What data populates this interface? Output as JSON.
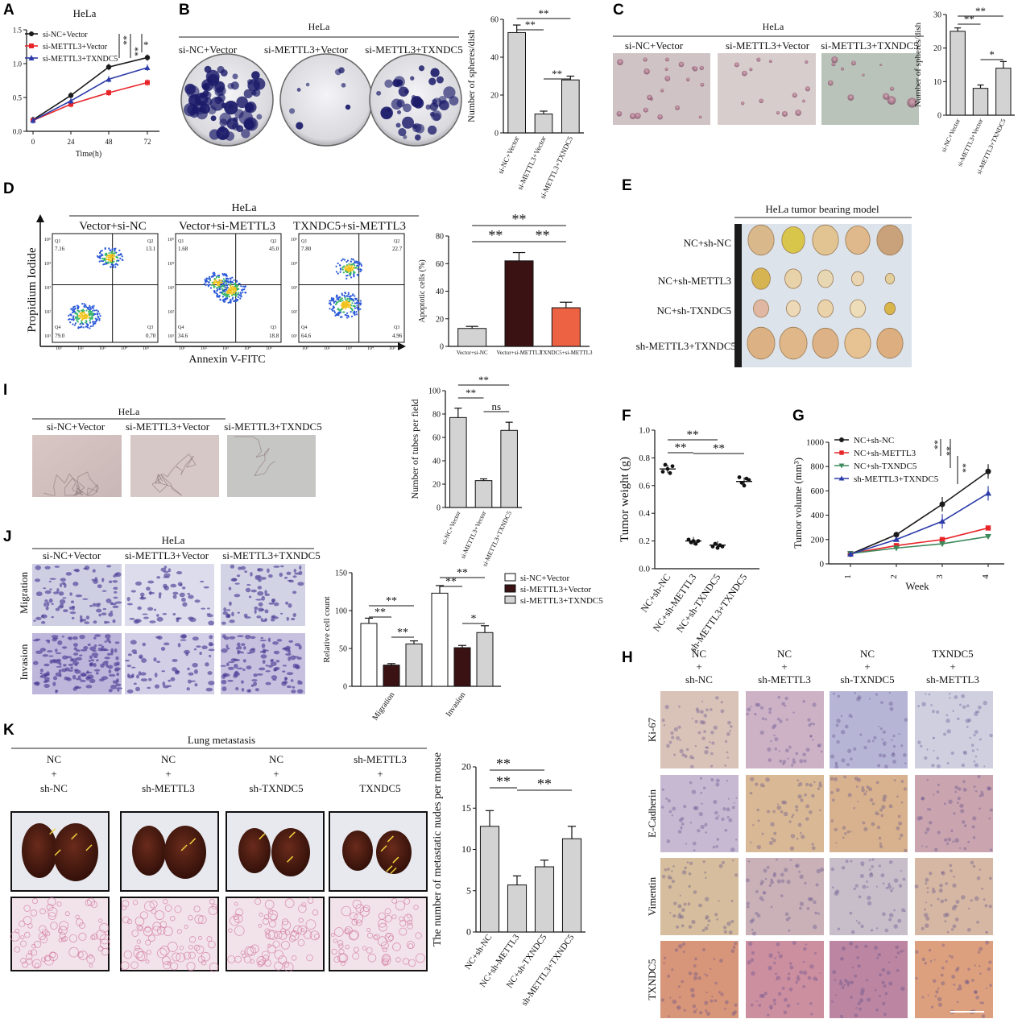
{
  "colors": {
    "black": "#1a1a1a",
    "red": "#e8262a",
    "blue": "#2c3ba8",
    "green": "#3d8a5c",
    "gray": "#d3d3d3",
    "dark": "#3a1214",
    "orange": "#ee6244",
    "crystal": "#1b1b6a"
  },
  "panels": {
    "A": {
      "label": "A",
      "title": "HeLa"
    },
    "B": {
      "label": "B",
      "title": "HeLa",
      "images": [
        "si-NC+Vector",
        "si-METTL3+Vector",
        "si-METTL3+TXNDC5"
      ]
    },
    "C": {
      "label": "C",
      "title": "HeLa",
      "images": [
        "si-NC+Vector",
        "si-METTL3+Vector",
        "si-METTL3+TXNDC5"
      ]
    },
    "D": {
      "label": "D",
      "title": "HeLa",
      "flow_titles": [
        "Vector+si-NC",
        "Vector+si-METTL3",
        "TXNDC5+si-METTL3"
      ],
      "y_axis": "Propidium Iodide",
      "x_axis": "Annexin V-FITC",
      "quadrant_names": [
        "Q1",
        "Q2",
        "Q3",
        "Q4"
      ],
      "quadrants": [
        {
          "q1": "7.16",
          "q2": "13.1",
          "q3": "0.70",
          "q4": "79.0"
        },
        {
          "q1": "1.68",
          "q2": "45.0",
          "q3": "18.8",
          "q4": "34.6"
        },
        {
          "q1": "7.80",
          "q2": "22.7",
          "q3": "4.96",
          "q4": "64.6"
        }
      ],
      "ticks": [
        "10¹",
        "10²",
        "10³",
        "10⁴",
        "10⁵"
      ]
    },
    "E": {
      "label": "E",
      "title": "HeLa tumor bearing model",
      "rows": [
        "NC+sh-NC",
        "NC+sh-METTL3",
        "NC+sh-TXNDC5",
        "sh-METTL3+TXNDC5"
      ]
    },
    "F": {
      "label": "F"
    },
    "G": {
      "label": "G"
    },
    "H": {
      "label": "H",
      "columns": [
        [
          "NC",
          "+",
          "sh-NC"
        ],
        [
          "NC",
          "+",
          "sh-METTL3"
        ],
        [
          "NC",
          "+",
          "sh-TXNDC5"
        ],
        [
          "TXNDC5",
          "+",
          "sh-METTL3"
        ]
      ],
      "rows": [
        "Ki-67",
        "E-Cadherin",
        "Vimentin",
        "TXNDC5"
      ]
    },
    "I": {
      "label": "I",
      "title": "HeLa",
      "images": [
        "si-NC+Vector",
        "si-METTL3+Vector",
        "si-METTL3+TXNDC5"
      ]
    },
    "J": {
      "label": "J",
      "title": "HeLa",
      "images": [
        "si-NC+Vector",
        "si-METTL3+Vector",
        "si-METTL3+TXNDC5"
      ],
      "rows": [
        "Migration",
        "Invasion"
      ]
    },
    "K": {
      "label": "K",
      "title": "Lung metastasis",
      "columns": [
        [
          "NC",
          "+",
          "sh-NC"
        ],
        [
          "NC",
          "+",
          "sh-METTL3"
        ],
        [
          "NC",
          "+",
          "sh-TXNDC5"
        ],
        [
          "sh-METTL3",
          "+",
          "TXNDC5"
        ]
      ]
    }
  },
  "chart_data": [
    {
      "id": "A",
      "type": "line",
      "x": [
        0,
        24,
        48,
        72
      ],
      "xlabel": "Time(h)",
      "ylabel": "",
      "ylim": [
        0,
        1.5
      ],
      "yticks": [
        0,
        0.5,
        1.0,
        1.5
      ],
      "ytick_labels": [
        "0.0",
        "0.5",
        "1.0",
        "1.5"
      ],
      "series": [
        {
          "name": "si-NC+Vector",
          "color": "#1a1a1a",
          "values": [
            0.17,
            0.53,
            0.95,
            1.09
          ]
        },
        {
          "name": "si-METTL3+Vector",
          "color": "#e8262a",
          "values": [
            0.16,
            0.4,
            0.57,
            0.72
          ]
        },
        {
          "name": "si-METTL3+TXNDC5",
          "color": "#2c3ba8",
          "values": [
            0.16,
            0.45,
            0.77,
            0.94
          ]
        }
      ],
      "sig": [
        "**",
        "**",
        "*"
      ]
    },
    {
      "id": "B",
      "type": "bar",
      "categories": [
        "si-NC+Vector",
        "si-METTL3+Vector",
        "si-METTL3+TXNDC5"
      ],
      "values": [
        53,
        10,
        28
      ],
      "errors": [
        4,
        1.5,
        2
      ],
      "ylabel": "Number of spheres/dish",
      "ylim": [
        0,
        60
      ],
      "yticks": [
        0,
        20,
        40,
        60
      ],
      "sig": [
        "**",
        "**",
        "**"
      ]
    },
    {
      "id": "C",
      "type": "bar",
      "categories": [
        "si-NC+Vector",
        "si-METTL3+Vector",
        "si-METTL3+TXNDC5"
      ],
      "values": [
        25,
        8,
        14
      ],
      "errors": [
        1,
        1,
        2
      ],
      "ylabel": "Number of spheres/dish",
      "ylim": [
        0,
        30
      ],
      "yticks": [
        0,
        10,
        20,
        30
      ],
      "sig": [
        "**",
        "**",
        "*"
      ]
    },
    {
      "id": "D",
      "type": "bar",
      "categories": [
        "Vector+si-NC",
        "Vector+si-METTL3",
        "TXNDC5+si-METTL3"
      ],
      "values": [
        13,
        62,
        28
      ],
      "errors": [
        1.5,
        6,
        4
      ],
      "ylabel": "Apoptotic cells (%)",
      "ylim": [
        0,
        80
      ],
      "yticks": [
        0,
        20,
        40,
        60,
        80
      ],
      "sig": [
        "**",
        "**",
        "**"
      ]
    },
    {
      "id": "F",
      "type": "scatter",
      "categories": [
        "NC+sh-NC",
        "NC+sh-METTL3",
        "NC+sh-TXNDC5",
        "sh-METTL3+TXNDC5"
      ],
      "points": [
        [
          0.7,
          0.75,
          0.72,
          0.69,
          0.74
        ],
        [
          0.21,
          0.19,
          0.2,
          0.18,
          0.2
        ],
        [
          0.16,
          0.18,
          0.15,
          0.17,
          0.16
        ],
        [
          0.66,
          0.62,
          0.6,
          0.65,
          0.64
        ]
      ],
      "means": [
        0.72,
        0.2,
        0.17,
        0.63
      ],
      "ylabel": "Tumor weight (g)",
      "ylim": [
        0,
        1.0
      ],
      "yticks": [
        0,
        0.2,
        0.4,
        0.6,
        0.8,
        1.0
      ],
      "ytick_labels": [
        "0.0",
        "0.2",
        "0.4",
        "0.6",
        "0.8",
        "1.0"
      ],
      "sig": [
        "**",
        "**",
        "**"
      ]
    },
    {
      "id": "G",
      "type": "line",
      "x": [
        1,
        2,
        3,
        4
      ],
      "xlabel": "Week",
      "ylabel": "Tumor volume (mm³)",
      "ylim": [
        0,
        1000
      ],
      "yticks": [
        0,
        200,
        400,
        600,
        800,
        1000
      ],
      "series": [
        {
          "name": "NC+sh-NC",
          "color": "#1a1a1a",
          "values": [
            80,
            240,
            490,
            760
          ]
        },
        {
          "name": "NC+sh-METTL3",
          "color": "#e8262a",
          "values": [
            85,
            150,
            200,
            295
          ]
        },
        {
          "name": "NC+sh-TXNDC5",
          "color": "#3d8a5c",
          "values": [
            85,
            130,
            165,
            225
          ]
        },
        {
          "name": "sh-METTL3+TXNDC5",
          "color": "#2c3ba8",
          "values": [
            80,
            200,
            350,
            580
          ]
        }
      ],
      "sig": [
        "**",
        "**",
        "**"
      ]
    },
    {
      "id": "I",
      "type": "bar",
      "categories": [
        "si-NC+Vector",
        "si-METTL3+Vector",
        "si-METTL3+TXNDC5"
      ],
      "values": [
        77,
        23,
        66
      ],
      "errors": [
        8,
        1.5,
        7
      ],
      "ylabel": "Number of tubes per field",
      "ylim": [
        0,
        100
      ],
      "yticks": [
        0,
        20,
        40,
        60,
        80,
        100
      ],
      "sig": [
        "**",
        "**",
        "ns"
      ]
    },
    {
      "id": "J",
      "type": "bar",
      "categories": [
        "Migration",
        "Invasion"
      ],
      "series": [
        {
          "name": "si-NC+Vector",
          "color": "#ffffff",
          "values": [
            83,
            123
          ],
          "errors": [
            7,
            10
          ]
        },
        {
          "name": "si-METTL3+Vector",
          "color": "#3a1214",
          "values": [
            28,
            51
          ],
          "errors": [
            2,
            3
          ]
        },
        {
          "name": "si-METTL3+TXNDC5",
          "color": "#d3d3d3",
          "values": [
            56,
            71
          ],
          "errors": [
            4,
            9
          ]
        }
      ],
      "ylabel": "Relative cell count",
      "ylim": [
        0,
        150
      ],
      "yticks": [
        0,
        50,
        100,
        150
      ],
      "sig": [
        "**",
        "**",
        "**",
        "**",
        "**",
        "*"
      ]
    },
    {
      "id": "K",
      "type": "bar",
      "categories": [
        "NC+sh-NC",
        "NC+sh-METTL3",
        "NC+sh-TXNDC5",
        "sh-METTL3+TXNDC5"
      ],
      "values": [
        12.8,
        5.7,
        7.9,
        11.3
      ],
      "errors": [
        1.9,
        1.1,
        0.8,
        1.5
      ],
      "ylabel": "The number of metastatic nudes per mouse",
      "ylim": [
        0,
        20
      ],
      "yticks": [
        0,
        5,
        10,
        15,
        20
      ],
      "sig": [
        "**",
        "**",
        "**"
      ]
    }
  ]
}
